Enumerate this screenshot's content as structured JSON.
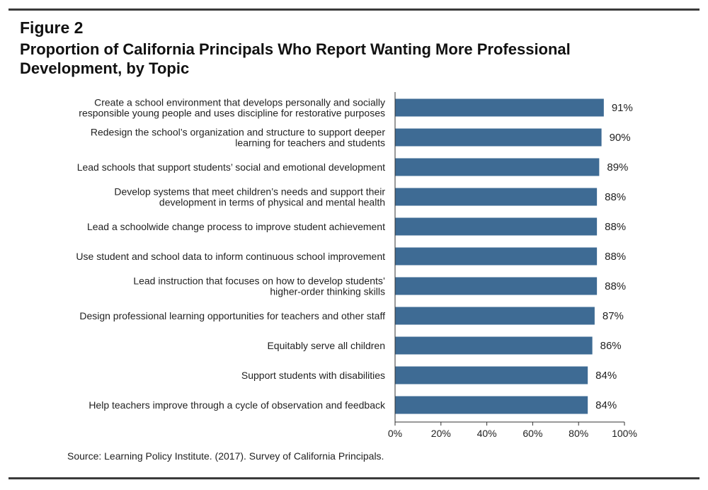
{
  "figure": {
    "label": "Figure 2",
    "title": "Proportion of California Principals Who Report Wanting More Professional Development, by Topic"
  },
  "source": "Source: Learning Policy Institute. (2017). Survey of California Principals.",
  "colors": {
    "bar": "#3e6b94",
    "axis": "#333333",
    "rule": "#3a3a3a"
  },
  "chart_data": {
    "type": "bar",
    "orientation": "horizontal",
    "categories": [
      [
        "Create a school environment that develops personally and socially",
        "responsible young people and uses discipline for restorative purposes"
      ],
      [
        "Redesign the school’s organization and structure to support deeper",
        "learning for teachers and students"
      ],
      [
        "Lead schools that support students’ social and emotional development"
      ],
      [
        "Develop systems that meet children’s needs and support their",
        "development in terms of physical and mental health"
      ],
      [
        "Lead a schoolwide change process to improve student achievement"
      ],
      [
        "Use student and school data to inform continuous school improvement"
      ],
      [
        "Lead instruction that focuses on how to develop students’",
        "higher-order thinking skills"
      ],
      [
        "Design professional learning opportunities for teachers and other staff"
      ],
      [
        "Equitably serve all children"
      ],
      [
        "Support students with disabilities"
      ],
      [
        "Help teachers improve through a cycle of observation and feedback"
      ]
    ],
    "values": [
      91,
      90,
      89,
      88,
      88,
      88,
      88,
      87,
      86,
      84,
      84
    ],
    "value_labels": [
      "91%",
      "90%",
      "89%",
      "88%",
      "88%",
      "88%",
      "88%",
      "87%",
      "86%",
      "84%",
      "84%"
    ],
    "xlim": [
      0,
      100
    ],
    "xticks": [
      0,
      20,
      40,
      60,
      80,
      100
    ],
    "xtick_labels": [
      "0%",
      "20%",
      "40%",
      "60%",
      "80%",
      "100%"
    ],
    "grid": false
  }
}
